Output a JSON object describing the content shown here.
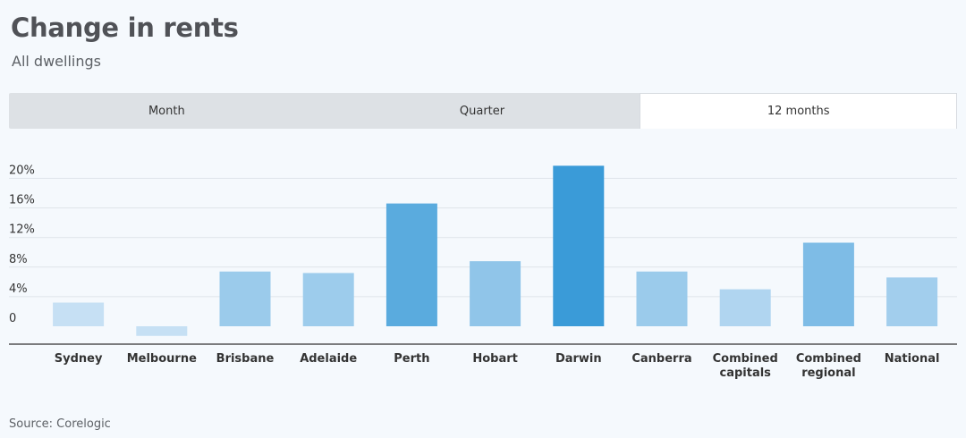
{
  "header": {
    "title": "Change in rents",
    "subtitle": "All dwellings"
  },
  "tabs": [
    {
      "label": "Month",
      "active": false
    },
    {
      "label": "Quarter",
      "active": false
    },
    {
      "label": "12 months",
      "active": true
    }
  ],
  "footer": {
    "source": "Source: Corelogic"
  },
  "colors": {
    "low": "#c6e0f4",
    "high": "#3a9bd8",
    "gridline": "#dfe4ea",
    "axis": "#333333"
  },
  "chart_data": {
    "type": "bar",
    "title": "Change in rents",
    "subtitle": "All dwellings",
    "xlabel": "",
    "ylabel": "",
    "categories": [
      "Sydney",
      "Melbourne",
      "Brisbane",
      "Adelaide",
      "Perth",
      "Hobart",
      "Darwin",
      "Canberra",
      "Combined capitals",
      "Combined regional",
      "National"
    ],
    "values": [
      3.2,
      -1.3,
      7.4,
      7.2,
      16.6,
      8.8,
      21.7,
      7.4,
      5.0,
      11.3,
      6.6
    ],
    "ylim": [
      -2,
      22
    ],
    "yticks": [
      0,
      4,
      8,
      12,
      16,
      20
    ],
    "ytick_labels": [
      "0",
      "4%",
      "8%",
      "12%",
      "16%",
      "20%"
    ],
    "grid": true,
    "legend": "none"
  }
}
